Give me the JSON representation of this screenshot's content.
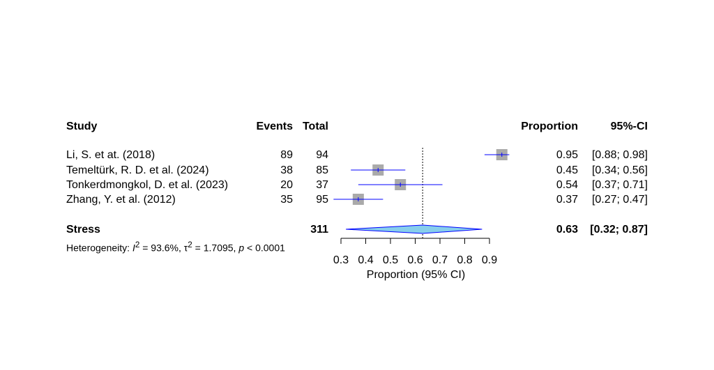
{
  "chart_data": {
    "type": "forest",
    "columns": {
      "study": "Study",
      "events": "Events",
      "total": "Total",
      "proportion": "Proportion",
      "ci": "95%-CI"
    },
    "studies": [
      {
        "name": "Li, S. et at. (2018)",
        "events": "89",
        "total": "94",
        "proportion": 0.95,
        "lower": 0.88,
        "upper": 0.98,
        "proportion_text": "0.95",
        "ci_text": "[0.88; 0.98]"
      },
      {
        "name": "Temeltürk, R. D. et al. (2024)",
        "events": "38",
        "total": "85",
        "proportion": 0.45,
        "lower": 0.34,
        "upper": 0.56,
        "proportion_text": "0.45",
        "ci_text": "[0.34; 0.56]"
      },
      {
        "name": "Tonkerdmongkol, D. et al. (2023)",
        "events": "20",
        "total": "37",
        "proportion": 0.54,
        "lower": 0.37,
        "upper": 0.71,
        "proportion_text": "0.54",
        "ci_text": "[0.37; 0.71]"
      },
      {
        "name": "Zhang, Y. et al. (2012)",
        "events": "35",
        "total": "95",
        "proportion": 0.37,
        "lower": 0.27,
        "upper": 0.47,
        "proportion_text": "0.37",
        "ci_text": "[0.27; 0.47]"
      }
    ],
    "pooled": {
      "name": "Stress",
      "total": "311",
      "proportion": 0.63,
      "lower": 0.32,
      "upper": 0.87,
      "proportion_text": "0.63",
      "ci_text": "[0.32; 0.87]"
    },
    "heterogeneity": {
      "prefix": "Heterogeneity: ",
      "i2_symbol": "I",
      "i2_sup": "2",
      "i2_value": " = 93.6%, ",
      "tau_symbol": "τ",
      "tau_sup": "2",
      "tau_value": " = 1.7095, ",
      "p_symbol": "p",
      "p_value": " < 0.0001"
    },
    "xaxis": {
      "label": "Proportion (95% CI)",
      "ticks": [
        0.3,
        0.4,
        0.5,
        0.6,
        0.7,
        0.8,
        0.9
      ],
      "tick_labels": [
        "0.3",
        "0.4",
        "0.5",
        "0.6",
        "0.7",
        "0.8",
        "0.9"
      ],
      "range": [
        0.3,
        0.9
      ]
    },
    "reference_line": 0.63,
    "colors": {
      "square": "#aaaaaa",
      "ci_line": "#0000ff",
      "diamond_fill": "#87ceeb",
      "diamond_stroke": "#0000ff",
      "axis": "#000000"
    }
  }
}
